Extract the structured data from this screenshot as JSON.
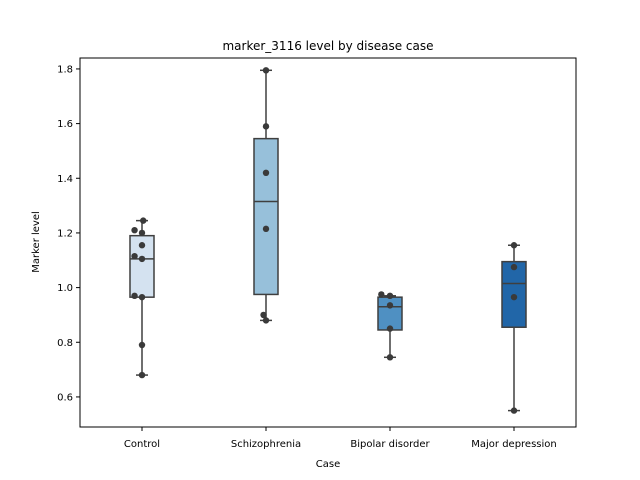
{
  "chart_data": {
    "type": "box",
    "title": "marker_3116 level by disease case",
    "xlabel": "Case",
    "ylabel": "Marker level",
    "ylim": [
      0.49,
      1.84
    ],
    "yticks": [
      "0.6",
      "0.8",
      "1.0",
      "1.2",
      "1.4",
      "1.6",
      "1.8"
    ],
    "grid": false,
    "categories": [
      "Control",
      "Schizophrenia",
      "Bipolar disorder",
      "Major depression"
    ],
    "colors": [
      "#d4e2f0",
      "#97c0da",
      "#4f90c2",
      "#2166a8"
    ],
    "boxes": [
      {
        "category": "Control",
        "whisker_low": 0.68,
        "q1": 0.965,
        "median": 1.105,
        "q3": 1.19,
        "whisker_high": 1.245
      },
      {
        "category": "Schizophrenia",
        "whisker_low": 0.88,
        "q1": 0.975,
        "median": 1.315,
        "q3": 1.545,
        "whisker_high": 1.795
      },
      {
        "category": "Bipolar disorder",
        "whisker_low": 0.745,
        "q1": 0.845,
        "median": 0.93,
        "q3": 0.965,
        "whisker_high": 0.97
      },
      {
        "category": "Major depression",
        "whisker_low": 0.55,
        "q1": 0.855,
        "median": 1.015,
        "q3": 1.095,
        "whisker_high": 1.155
      }
    ],
    "points": [
      {
        "category": "Control",
        "values": [
          1.245,
          1.21,
          1.2,
          1.155,
          1.115,
          1.105,
          0.97,
          0.965,
          0.79,
          0.68
        ],
        "offsets": [
          0.01,
          -0.06,
          0.0,
          0.0,
          -0.06,
          0.0,
          -0.06,
          0.0,
          0.0,
          0.0
        ]
      },
      {
        "category": "Schizophrenia",
        "values": [
          1.795,
          1.59,
          1.42,
          1.215,
          0.9,
          0.88
        ],
        "offsets": [
          0.0,
          0.0,
          0.0,
          0.0,
          -0.02,
          0.0
        ]
      },
      {
        "category": "Bipolar disorder",
        "values": [
          0.975,
          0.97,
          0.935,
          0.85,
          0.745
        ],
        "offsets": [
          -0.07,
          0.0,
          0.0,
          0.0,
          0.0
        ]
      },
      {
        "category": "Major depression",
        "values": [
          1.155,
          1.075,
          0.965,
          0.55
        ],
        "offsets": [
          0.0,
          0.0,
          0.0,
          0.0
        ]
      }
    ]
  }
}
